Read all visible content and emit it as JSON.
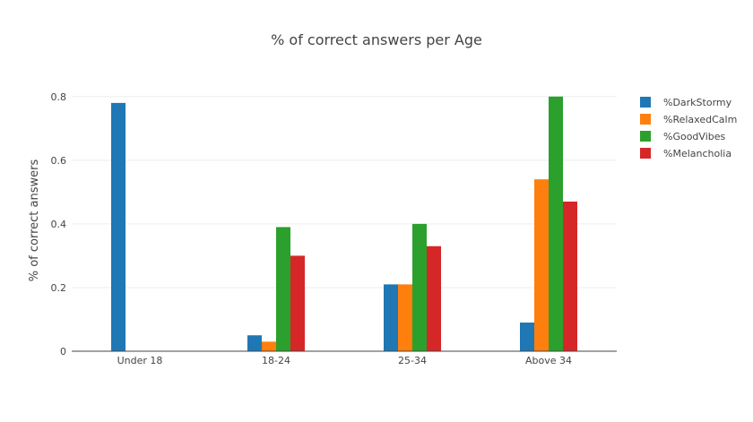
{
  "chart_data": {
    "type": "bar",
    "title": "% of correct answers per Age",
    "xlabel": "",
    "ylabel": "% of correct answers",
    "categories": [
      "Under 18",
      "18-24",
      "25-34",
      "Above 34"
    ],
    "ylim": [
      0,
      0.85
    ],
    "yticks": [
      0,
      0.2,
      0.4,
      0.6,
      0.8
    ],
    "ytick_labels": [
      "0",
      "0.2",
      "0.4",
      "0.6",
      "0.8"
    ],
    "grid": true,
    "legend_position": "top-right",
    "series": [
      {
        "name": "%DarkStormy",
        "color": "#1f77b4",
        "values": [
          0.78,
          0.05,
          0.21,
          0.09
        ]
      },
      {
        "name": "%RelaxedCalm",
        "color": "#ff7f0e",
        "values": [
          0,
          0.03,
          0.21,
          0.54
        ]
      },
      {
        "name": "%GoodVibes",
        "color": "#2ca02c",
        "values": [
          0,
          0.39,
          0.4,
          0.8
        ]
      },
      {
        "name": "%Melancholia",
        "color": "#d62728",
        "values": [
          0,
          0.3,
          0.33,
          0.47
        ]
      }
    ]
  }
}
